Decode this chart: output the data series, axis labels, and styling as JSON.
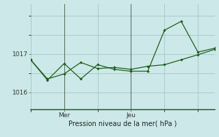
{
  "xlabel": "Pression niveau de la mer( hPa )",
  "background_color": "#cce8e8",
  "line_color": "#1a5c1a",
  "grid_color": "#aacaca",
  "ylim": [
    1015.55,
    1018.3
  ],
  "yticks": [
    1016,
    1017
  ],
  "xlim": [
    0,
    22
  ],
  "series1_x": [
    0,
    2,
    4,
    6,
    8,
    10,
    12,
    14,
    16,
    18,
    20,
    22
  ],
  "series1_y": [
    1016.85,
    1016.35,
    1016.48,
    1016.78,
    1016.62,
    1016.65,
    1016.6,
    1016.68,
    1016.72,
    1016.85,
    1016.98,
    1017.12
  ],
  "series2_x": [
    0,
    2,
    4,
    6,
    8,
    10,
    12,
    14,
    16,
    18,
    20,
    22
  ],
  "series2_y": [
    1016.85,
    1016.32,
    1016.75,
    1016.35,
    1016.72,
    1016.6,
    1016.55,
    1016.55,
    1017.62,
    1017.85,
    1017.05,
    1017.15
  ],
  "mer_x": 4,
  "jeu_x": 12
}
